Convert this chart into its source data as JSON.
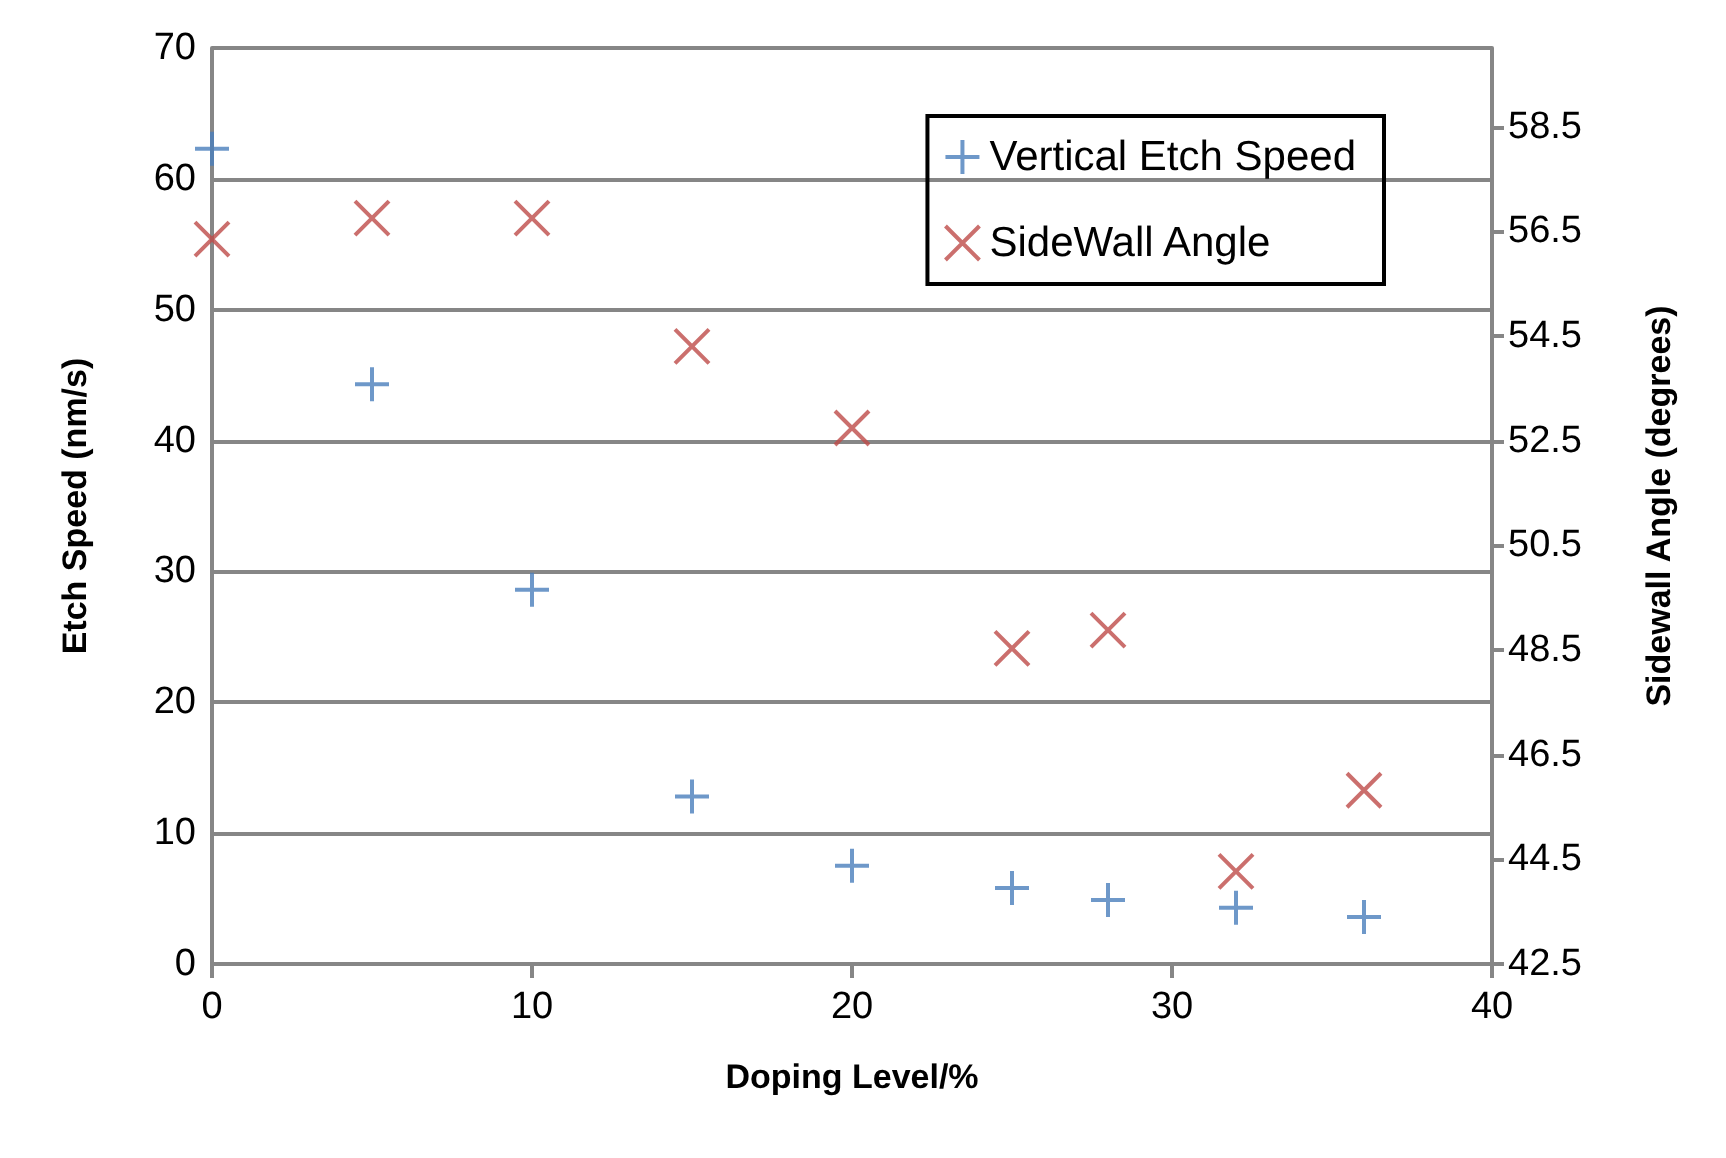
{
  "chart_data": {
    "type": "scatter",
    "xlabel": "Doping Level/%",
    "ylabel": "Etch Speed (nm/s)",
    "y2label": "Sidewall Angle (degrees)",
    "x": [
      0,
      5,
      10,
      15,
      20,
      25,
      28,
      32,
      36
    ],
    "series": [
      {
        "name": "Vertical Etch Speed",
        "color": "#4a7ebb",
        "marker": "plus",
        "values": [
          62.3,
          44.3,
          28.6,
          12.8,
          7.5,
          5.8,
          4.9,
          4.3,
          3.6
        ]
      },
      {
        "name": "SideWall Angle",
        "color": "#be4b48",
        "marker": "cross",
        "axis": "y2",
        "values": [
          56.35,
          56.75,
          56.75,
          54.3,
          52.74,
          48.53,
          48.88,
          44.27,
          45.82
        ]
      }
    ],
    "xlim": [
      0,
      40
    ],
    "xticks": [
      0,
      10,
      20,
      30,
      40
    ],
    "ylim": [
      0,
      70
    ],
    "yticks": [
      0,
      10,
      20,
      30,
      40,
      50,
      60,
      70
    ],
    "y2lim": [
      42.5,
      60
    ],
    "y2ticks": [
      42.5,
      44.5,
      46.5,
      48.5,
      50.5,
      52.5,
      54.5,
      56.5,
      58.5
    ],
    "grid": "y",
    "legend": "top right"
  }
}
